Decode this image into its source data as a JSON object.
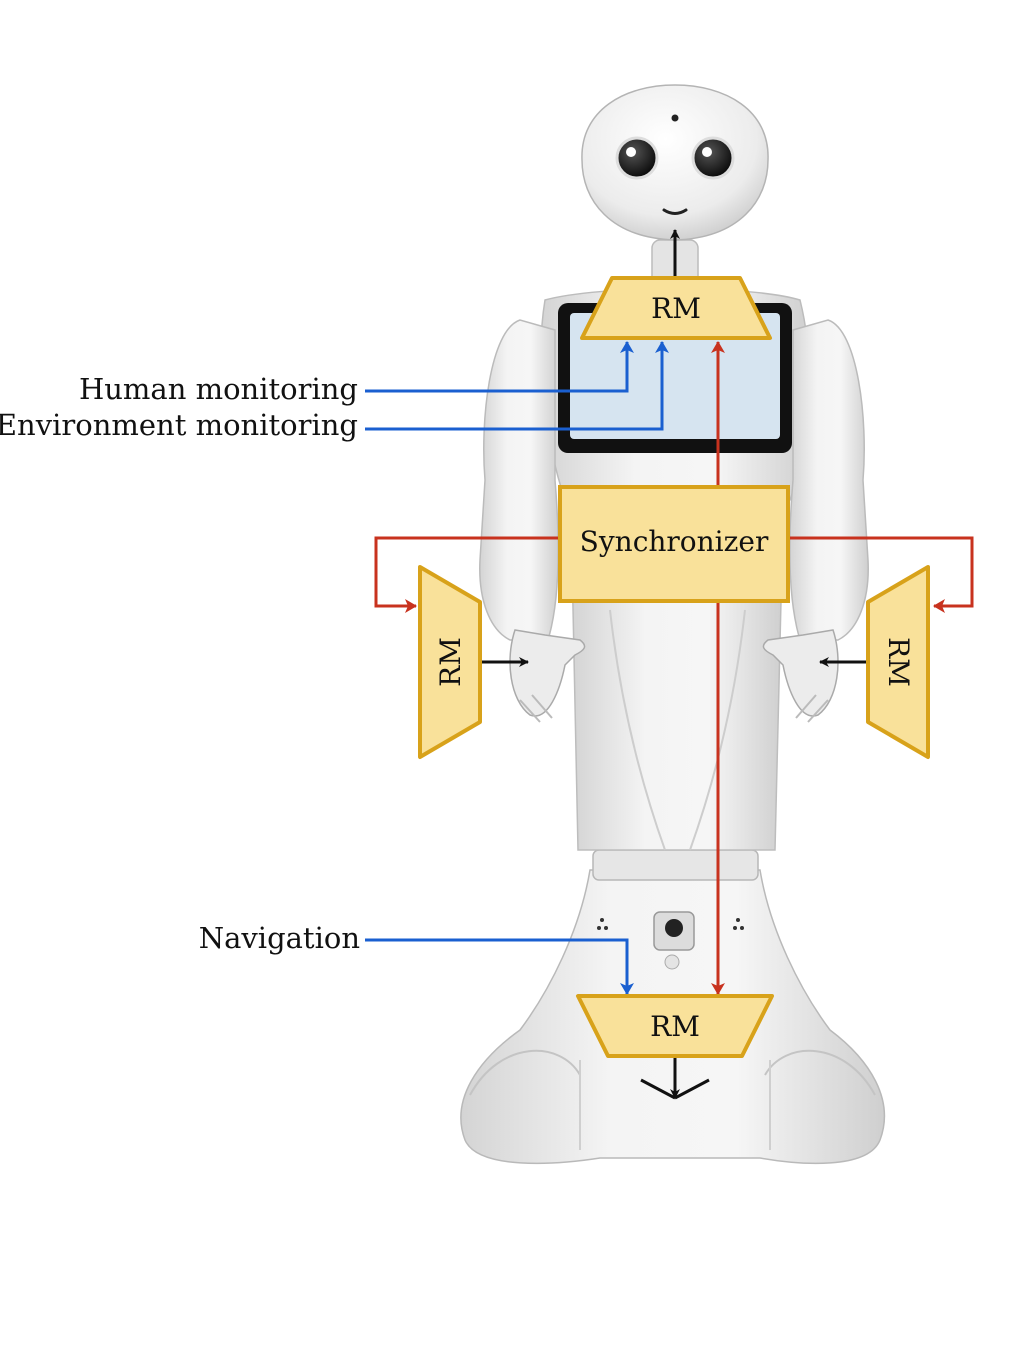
{
  "labels": {
    "human_monitoring": "Human monitoring",
    "environment_monitoring": "Environment monitoring",
    "navigation": "Navigation",
    "synchronizer": "Synchronizer",
    "rm_head": "RM",
    "rm_left_arm": "RM",
    "rm_right_arm": "RM",
    "rm_base": "RM"
  },
  "colors": {
    "module_fill": "#f9e19a",
    "module_stroke": "#d8a21a",
    "sync_arrow": "#c8321e",
    "input_arrow": "#1a5fd0",
    "output_arrow": "#111111",
    "screen": "#d6e4f0"
  }
}
